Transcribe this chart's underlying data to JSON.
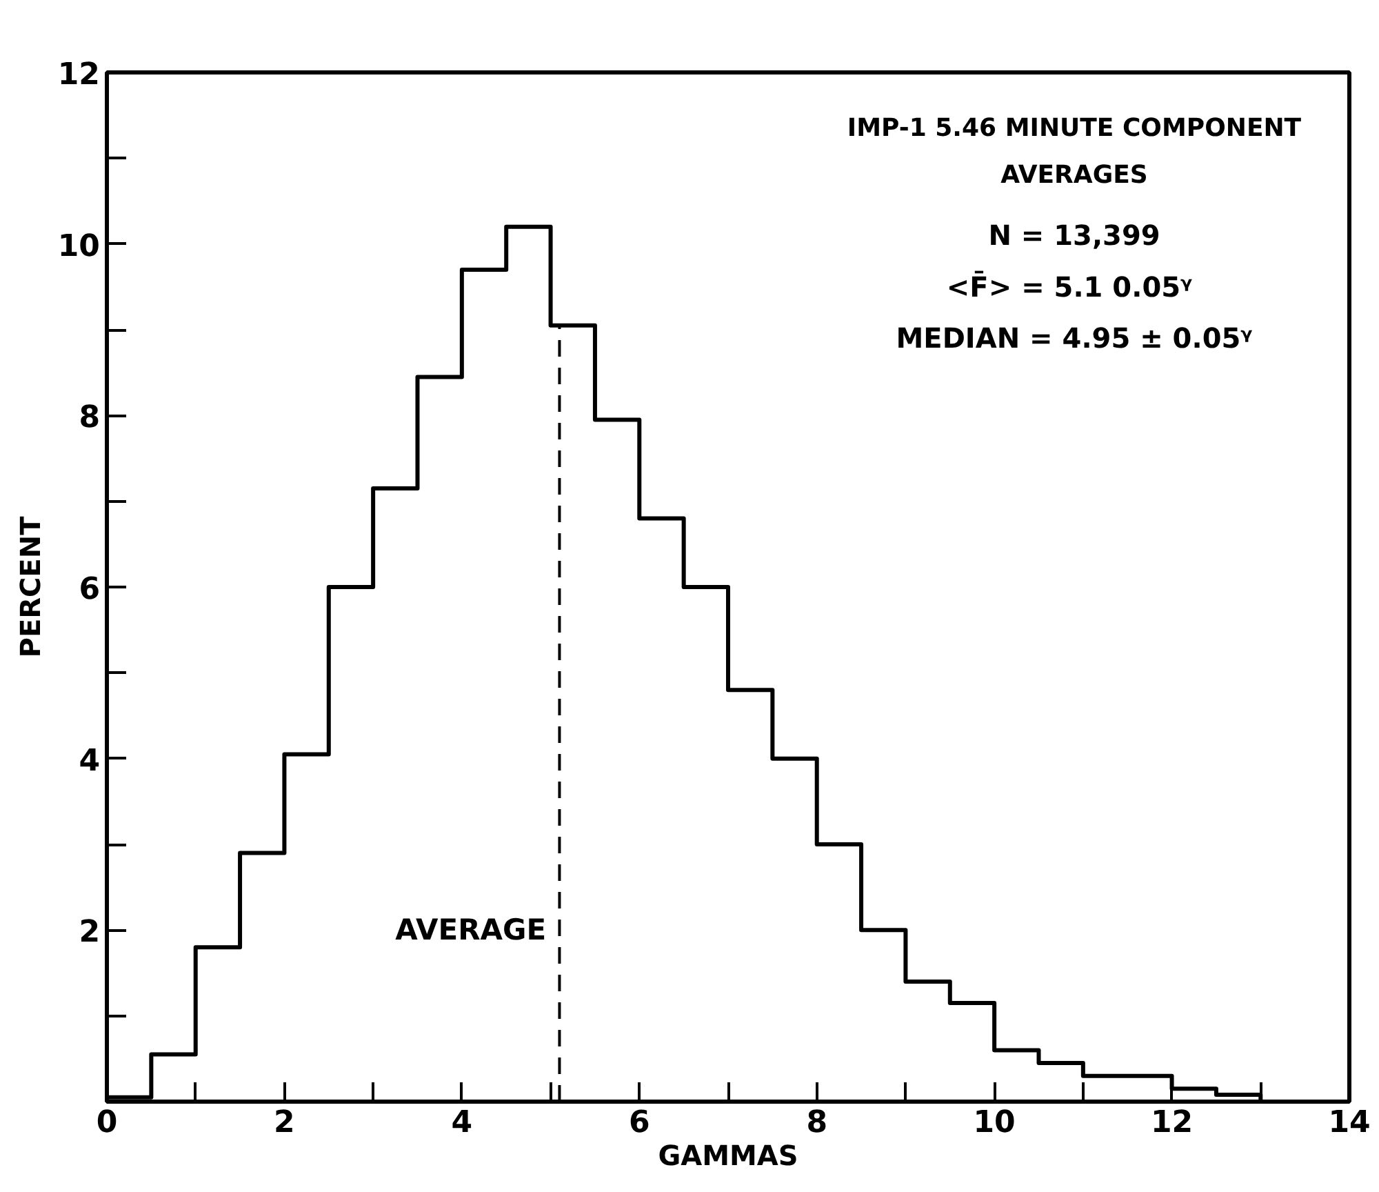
{
  "chart_data": {
    "type": "histogram",
    "title": "IMP-1 5.46 MINUTE COMPONENT AVERAGES",
    "xlabel": "GAMMAS",
    "ylabel": "PERCENT",
    "bins": [
      0,
      0.5,
      1,
      1.5,
      2,
      2.5,
      3,
      3.5,
      4,
      4.5,
      5,
      5.5,
      6,
      6.5,
      7,
      7.5,
      8,
      8.5,
      9,
      9.5,
      10,
      10.5,
      11,
      11.5,
      12,
      12.5,
      13
    ],
    "values": [
      0.05,
      0.55,
      1.8,
      2.9,
      4.05,
      6.0,
      7.15,
      8.45,
      9.7,
      10.2,
      9.05,
      7.95,
      6.8,
      6.0,
      4.8,
      4.0,
      3.0,
      2.0,
      1.4,
      1.15,
      0.6,
      0.45,
      0.3,
      0.3,
      0.15,
      0.08
    ],
    "color": "#000000",
    "xlim": [
      0,
      14
    ],
    "ylim": [
      0,
      12
    ],
    "xticks": [
      0,
      {
        "value": 1,
        "label": null
      },
      2,
      {
        "value": 3,
        "label": null
      },
      4,
      {
        "value": 5,
        "label": null
      },
      6,
      {
        "value": 7,
        "label": null
      },
      8,
      {
        "value": 9,
        "label": null
      },
      10,
      {
        "value": 11,
        "label": null
      },
      12,
      {
        "value": 13,
        "label": null
      },
      14
    ],
    "yticks": [
      {
        "value": 1,
        "label": null
      },
      2,
      {
        "value": 3,
        "label": null
      },
      4,
      {
        "value": 5,
        "label": null
      },
      6,
      {
        "value": 7,
        "label": null
      },
      8,
      {
        "value": 9,
        "label": null
      },
      10,
      {
        "value": 11,
        "label": null
      },
      12
    ],
    "ref_lines": [
      {
        "axis": "x",
        "value": 5.1,
        "label": "AVERAGE",
        "line_style": "dashed",
        "color": "#000000"
      }
    ],
    "annotations": [
      "N = 13,399",
      "<F̄> = 5.1  0.05ᵞ",
      "MEDIAN = 4.95 ± 0.05ᵞ"
    ],
    "grid": false
  }
}
